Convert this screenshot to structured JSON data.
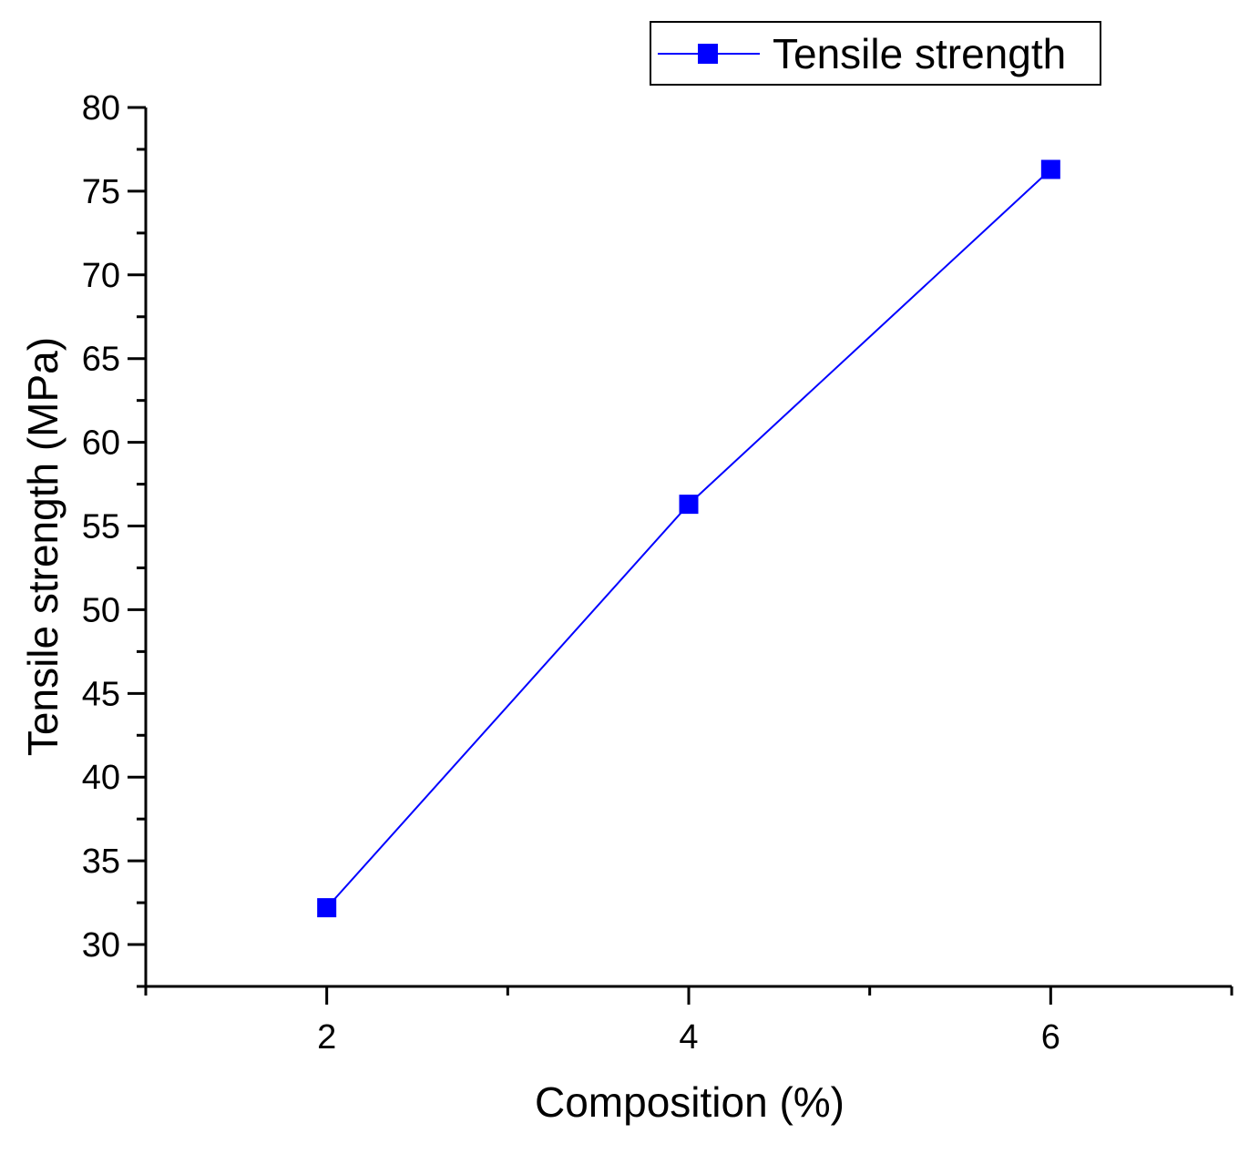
{
  "chart_data": {
    "type": "line",
    "title": "",
    "xlabel": "Composition (%)",
    "ylabel": "Tensile strength (MPa)",
    "xlim": [
      1,
      7
    ],
    "ylim": [
      27.5,
      80
    ],
    "xticks": [
      2,
      4,
      6
    ],
    "xtick_labels": [
      "2",
      "4",
      "6"
    ],
    "xminor": [
      1,
      3,
      5,
      7
    ],
    "yticks": [
      30,
      35,
      40,
      45,
      50,
      55,
      60,
      65,
      70,
      75,
      80
    ],
    "ytick_labels": [
      "30",
      "35",
      "40",
      "45",
      "50",
      "55",
      "60",
      "65",
      "70",
      "75",
      "80"
    ],
    "yminor": [
      27.5,
      32.5,
      37.5,
      42.5,
      47.5,
      52.5,
      57.5,
      62.5,
      67.5,
      72.5,
      77.5
    ],
    "grid": false,
    "legend_position": "top-right",
    "marker": "square",
    "series": [
      {
        "name": "Tensile strength",
        "color": "#0000ff",
        "x": [
          2,
          4,
          6
        ],
        "y": [
          32.2,
          56.3,
          76.3
        ]
      }
    ]
  }
}
